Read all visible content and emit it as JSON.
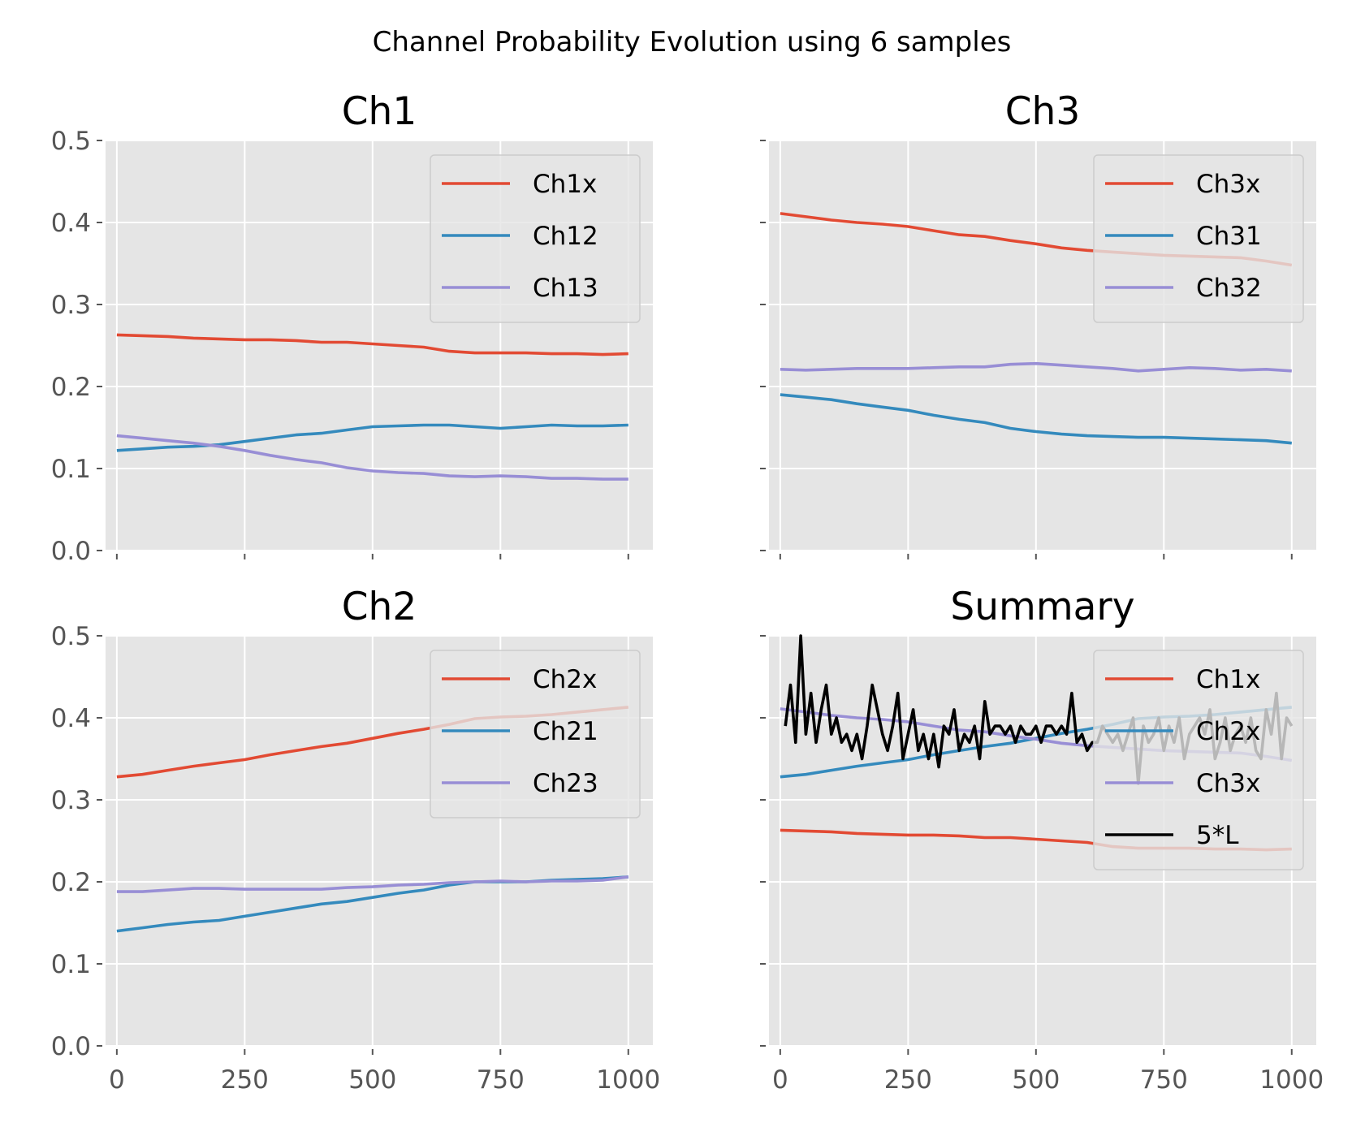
{
  "figure": {
    "suptitle": "Channel Probability Evolution using 6 samples"
  },
  "chart_data": [
    {
      "type": "line",
      "title": "Ch1",
      "xlabel": "",
      "ylabel": "",
      "xlim": [
        -22,
        1048
      ],
      "ylim": [
        0,
        0.5
      ],
      "xticks": [
        0,
        250,
        500,
        750,
        1000
      ],
      "yticks": [
        0.0,
        0.1,
        0.2,
        0.3,
        0.4,
        0.5
      ],
      "show_xticklabels": false,
      "show_yticklabels": true,
      "legend_position": "upper right",
      "grid": true,
      "series": [
        {
          "name": "Ch1x",
          "color": "#E24A33",
          "x": [
            0,
            50,
            100,
            150,
            200,
            250,
            300,
            350,
            400,
            450,
            500,
            550,
            600,
            650,
            700,
            750,
            800,
            850,
            900,
            950,
            1000
          ],
          "values": [
            0.263,
            0.262,
            0.261,
            0.259,
            0.258,
            0.257,
            0.257,
            0.256,
            0.254,
            0.254,
            0.252,
            0.25,
            0.248,
            0.243,
            0.241,
            0.241,
            0.241,
            0.24,
            0.24,
            0.239,
            0.24
          ]
        },
        {
          "name": "Ch12",
          "color": "#348ABD",
          "x": [
            0,
            50,
            100,
            150,
            200,
            250,
            300,
            350,
            400,
            450,
            500,
            550,
            600,
            650,
            700,
            750,
            800,
            850,
            900,
            950,
            1000
          ],
          "values": [
            0.122,
            0.124,
            0.126,
            0.127,
            0.129,
            0.133,
            0.137,
            0.141,
            0.143,
            0.147,
            0.151,
            0.152,
            0.153,
            0.153,
            0.151,
            0.149,
            0.151,
            0.153,
            0.152,
            0.152,
            0.153
          ]
        },
        {
          "name": "Ch13",
          "color": "#988ED5",
          "x": [
            0,
            50,
            100,
            150,
            200,
            250,
            300,
            350,
            400,
            450,
            500,
            550,
            600,
            650,
            700,
            750,
            800,
            850,
            900,
            950,
            1000
          ],
          "values": [
            0.14,
            0.137,
            0.134,
            0.131,
            0.127,
            0.122,
            0.116,
            0.111,
            0.107,
            0.101,
            0.097,
            0.095,
            0.094,
            0.091,
            0.09,
            0.091,
            0.09,
            0.088,
            0.088,
            0.087,
            0.087
          ]
        }
      ]
    },
    {
      "type": "line",
      "title": "Ch3",
      "xlabel": "",
      "ylabel": "",
      "xlim": [
        -22,
        1048
      ],
      "ylim": [
        0,
        0.5
      ],
      "xticks": [
        0,
        250,
        500,
        750,
        1000
      ],
      "yticks": [
        0.0,
        0.1,
        0.2,
        0.3,
        0.4,
        0.5
      ],
      "show_xticklabels": false,
      "show_yticklabels": false,
      "legend_position": "upper right",
      "grid": true,
      "series": [
        {
          "name": "Ch3x",
          "color": "#E24A33",
          "x": [
            0,
            50,
            100,
            150,
            200,
            250,
            300,
            350,
            400,
            450,
            500,
            550,
            600,
            650,
            700,
            750,
            800,
            850,
            900,
            950,
            1000
          ],
          "values": [
            0.411,
            0.407,
            0.403,
            0.4,
            0.398,
            0.395,
            0.39,
            0.385,
            0.383,
            0.378,
            0.374,
            0.369,
            0.366,
            0.364,
            0.362,
            0.36,
            0.359,
            0.358,
            0.357,
            0.353,
            0.348
          ]
        },
        {
          "name": "Ch31",
          "color": "#348ABD",
          "x": [
            0,
            50,
            100,
            150,
            200,
            250,
            300,
            350,
            400,
            450,
            500,
            550,
            600,
            650,
            700,
            750,
            800,
            850,
            900,
            950,
            1000
          ],
          "values": [
            0.19,
            0.187,
            0.184,
            0.179,
            0.175,
            0.171,
            0.165,
            0.16,
            0.156,
            0.149,
            0.145,
            0.142,
            0.14,
            0.139,
            0.138,
            0.138,
            0.137,
            0.136,
            0.135,
            0.134,
            0.131
          ]
        },
        {
          "name": "Ch32",
          "color": "#988ED5",
          "x": [
            0,
            50,
            100,
            150,
            200,
            250,
            300,
            350,
            400,
            450,
            500,
            550,
            600,
            650,
            700,
            750,
            800,
            850,
            900,
            950,
            1000
          ],
          "values": [
            0.221,
            0.22,
            0.221,
            0.222,
            0.222,
            0.222,
            0.223,
            0.224,
            0.224,
            0.227,
            0.228,
            0.226,
            0.224,
            0.222,
            0.219,
            0.221,
            0.223,
            0.222,
            0.22,
            0.221,
            0.219
          ]
        }
      ]
    },
    {
      "type": "line",
      "title": "Ch2",
      "xlabel": "",
      "ylabel": "",
      "xlim": [
        -22,
        1048
      ],
      "ylim": [
        0,
        0.5
      ],
      "xticks": [
        0,
        250,
        500,
        750,
        1000
      ],
      "yticks": [
        0.0,
        0.1,
        0.2,
        0.3,
        0.4,
        0.5
      ],
      "show_xticklabels": true,
      "show_yticklabels": true,
      "legend_position": "upper right",
      "grid": true,
      "series": [
        {
          "name": "Ch2x",
          "color": "#E24A33",
          "x": [
            0,
            50,
            100,
            150,
            200,
            250,
            300,
            350,
            400,
            450,
            500,
            550,
            600,
            650,
            700,
            750,
            800,
            850,
            900,
            950,
            1000
          ],
          "values": [
            0.328,
            0.331,
            0.336,
            0.341,
            0.345,
            0.349,
            0.355,
            0.36,
            0.365,
            0.369,
            0.375,
            0.381,
            0.386,
            0.392,
            0.399,
            0.401,
            0.402,
            0.404,
            0.407,
            0.41,
            0.413
          ]
        },
        {
          "name": "Ch21",
          "color": "#348ABD",
          "x": [
            0,
            50,
            100,
            150,
            200,
            250,
            300,
            350,
            400,
            450,
            500,
            550,
            600,
            650,
            700,
            750,
            800,
            850,
            900,
            950,
            1000
          ],
          "values": [
            0.14,
            0.144,
            0.148,
            0.151,
            0.153,
            0.158,
            0.163,
            0.168,
            0.173,
            0.176,
            0.181,
            0.186,
            0.19,
            0.196,
            0.2,
            0.2,
            0.2,
            0.202,
            0.203,
            0.204,
            0.206
          ]
        },
        {
          "name": "Ch23",
          "color": "#988ED5",
          "x": [
            0,
            50,
            100,
            150,
            200,
            250,
            300,
            350,
            400,
            450,
            500,
            550,
            600,
            650,
            700,
            750,
            800,
            850,
            900,
            950,
            1000
          ],
          "values": [
            0.188,
            0.188,
            0.19,
            0.192,
            0.192,
            0.191,
            0.191,
            0.191,
            0.191,
            0.193,
            0.194,
            0.196,
            0.197,
            0.199,
            0.2,
            0.201,
            0.2,
            0.201,
            0.201,
            0.202,
            0.206
          ]
        }
      ]
    },
    {
      "type": "line",
      "title": "Summary",
      "xlabel": "",
      "ylabel": "",
      "xlim": [
        -22,
        1048
      ],
      "ylim": [
        0,
        0.5
      ],
      "xticks": [
        0,
        250,
        500,
        750,
        1000
      ],
      "yticks": [
        0.0,
        0.1,
        0.2,
        0.3,
        0.4,
        0.5
      ],
      "show_xticklabels": true,
      "show_yticklabels": false,
      "legend_position": "upper right",
      "grid": true,
      "series": [
        {
          "name": "Ch1x",
          "color": "#E24A33",
          "x": [
            0,
            50,
            100,
            150,
            200,
            250,
            300,
            350,
            400,
            450,
            500,
            550,
            600,
            650,
            700,
            750,
            800,
            850,
            900,
            950,
            1000
          ],
          "values": [
            0.263,
            0.262,
            0.261,
            0.259,
            0.258,
            0.257,
            0.257,
            0.256,
            0.254,
            0.254,
            0.252,
            0.25,
            0.248,
            0.243,
            0.241,
            0.241,
            0.241,
            0.24,
            0.24,
            0.239,
            0.24
          ]
        },
        {
          "name": "Ch2x",
          "color": "#348ABD",
          "x": [
            0,
            50,
            100,
            150,
            200,
            250,
            300,
            350,
            400,
            450,
            500,
            550,
            600,
            650,
            700,
            750,
            800,
            850,
            900,
            950,
            1000
          ],
          "values": [
            0.328,
            0.331,
            0.336,
            0.341,
            0.345,
            0.349,
            0.355,
            0.36,
            0.365,
            0.369,
            0.375,
            0.381,
            0.386,
            0.392,
            0.399,
            0.401,
            0.402,
            0.404,
            0.407,
            0.41,
            0.413
          ]
        },
        {
          "name": "Ch3x",
          "color": "#988ED5",
          "x": [
            0,
            50,
            100,
            150,
            200,
            250,
            300,
            350,
            400,
            450,
            500,
            550,
            600,
            650,
            700,
            750,
            800,
            850,
            900,
            950,
            1000
          ],
          "values": [
            0.411,
            0.407,
            0.403,
            0.4,
            0.398,
            0.395,
            0.39,
            0.385,
            0.383,
            0.378,
            0.374,
            0.369,
            0.366,
            0.364,
            0.362,
            0.36,
            0.359,
            0.358,
            0.357,
            0.353,
            0.348
          ]
        },
        {
          "name": "5*L",
          "color": "#000000",
          "x": [
            10,
            20,
            30,
            40,
            50,
            60,
            70,
            80,
            90,
            100,
            110,
            120,
            130,
            140,
            150,
            160,
            170,
            180,
            190,
            200,
            210,
            220,
            230,
            240,
            250,
            260,
            270,
            280,
            290,
            300,
            310,
            320,
            330,
            340,
            350,
            360,
            370,
            380,
            390,
            400,
            410,
            420,
            430,
            440,
            450,
            460,
            470,
            480,
            490,
            500,
            510,
            520,
            530,
            540,
            550,
            560,
            570,
            580,
            590,
            600,
            610,
            620,
            630,
            640,
            650,
            660,
            670,
            680,
            690,
            700,
            710,
            720,
            730,
            740,
            750,
            760,
            770,
            780,
            790,
            800,
            810,
            820,
            830,
            840,
            850,
            860,
            870,
            880,
            890,
            900,
            910,
            920,
            930,
            940,
            950,
            960,
            970,
            980,
            990,
            1000
          ],
          "values": [
            0.39,
            0.44,
            0.37,
            0.5,
            0.38,
            0.43,
            0.37,
            0.41,
            0.44,
            0.38,
            0.4,
            0.37,
            0.38,
            0.36,
            0.38,
            0.35,
            0.39,
            0.44,
            0.41,
            0.38,
            0.36,
            0.39,
            0.43,
            0.35,
            0.38,
            0.41,
            0.36,
            0.38,
            0.35,
            0.38,
            0.34,
            0.39,
            0.38,
            0.41,
            0.36,
            0.38,
            0.37,
            0.39,
            0.35,
            0.42,
            0.38,
            0.39,
            0.39,
            0.38,
            0.39,
            0.37,
            0.39,
            0.38,
            0.38,
            0.39,
            0.37,
            0.39,
            0.39,
            0.38,
            0.39,
            0.38,
            0.43,
            0.37,
            0.38,
            0.36,
            0.37,
            0.37,
            0.39,
            0.38,
            0.37,
            0.38,
            0.36,
            0.38,
            0.4,
            0.32,
            0.39,
            0.37,
            0.38,
            0.4,
            0.36,
            0.39,
            0.37,
            0.4,
            0.35,
            0.38,
            0.39,
            0.4,
            0.38,
            0.41,
            0.35,
            0.37,
            0.4,
            0.36,
            0.38,
            0.39,
            0.37,
            0.4,
            0.36,
            0.35,
            0.41,
            0.38,
            0.43,
            0.35,
            0.4,
            0.39
          ]
        }
      ]
    }
  ]
}
